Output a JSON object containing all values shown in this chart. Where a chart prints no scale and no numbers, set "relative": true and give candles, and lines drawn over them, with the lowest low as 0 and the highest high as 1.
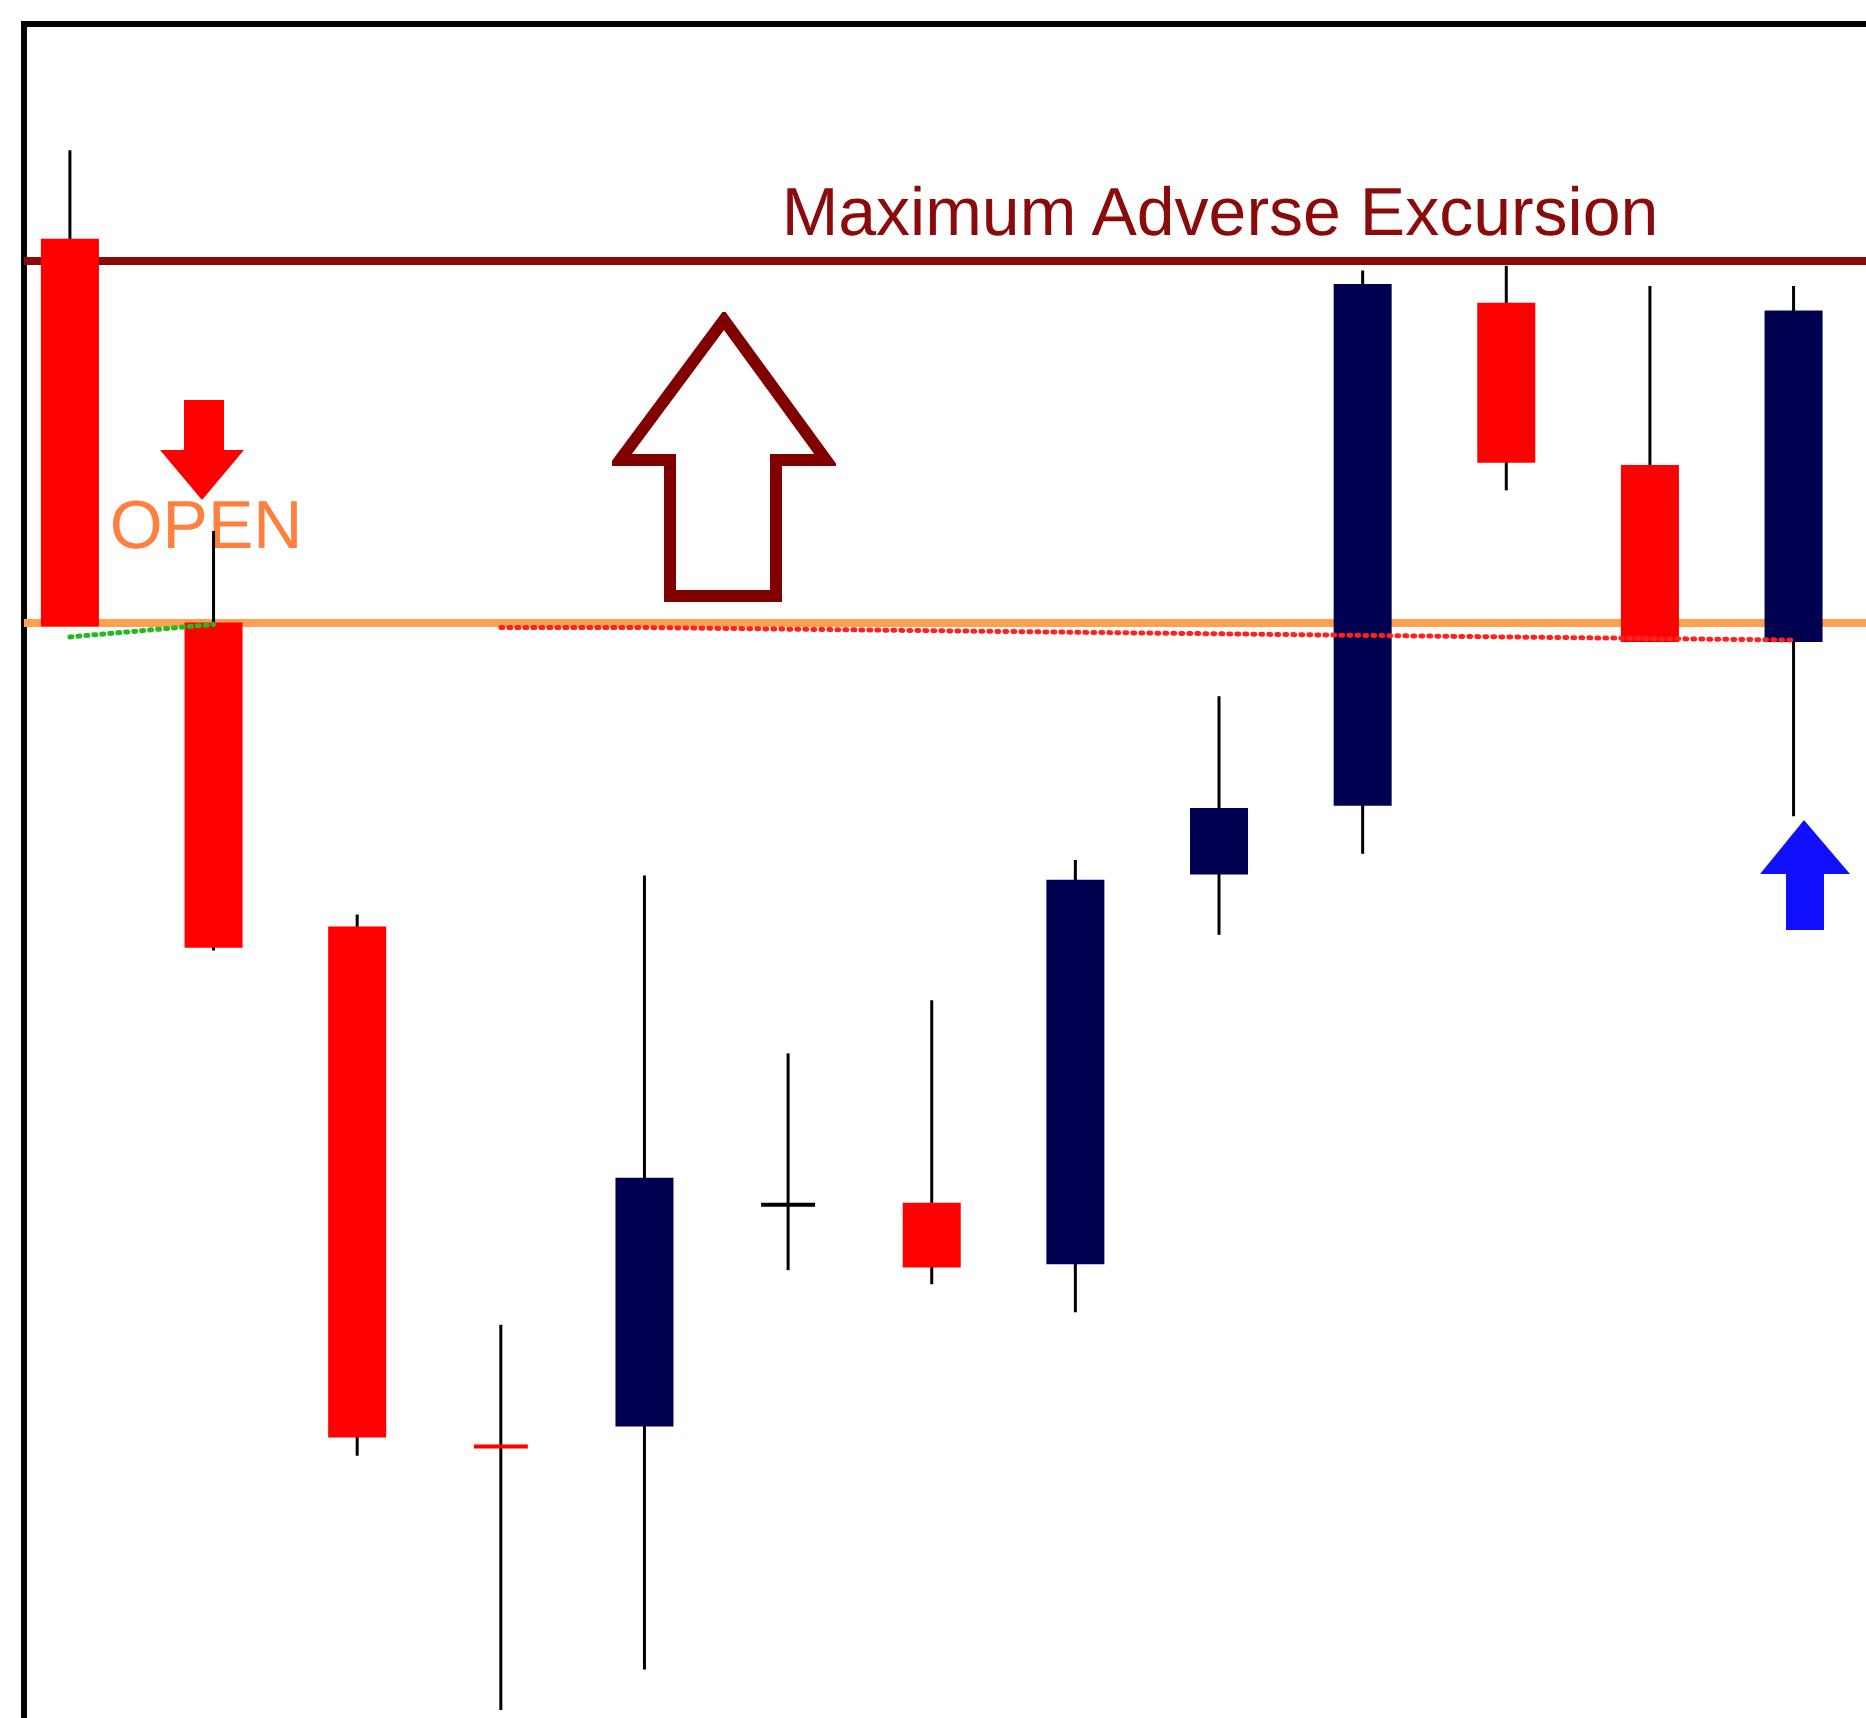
{
  "chart_data": {
    "type": "candlestick",
    "relative": true,
    "categories": [
      null,
      null,
      null,
      null,
      null,
      null,
      null,
      null,
      null,
      null,
      null,
      null,
      null
    ],
    "ohlc": [
      [
        0.942,
        1.0,
        0.696,
        0.696
      ],
      [
        0.696,
        0.756,
        0.487,
        0.49
      ],
      [
        0.501,
        0.51,
        0.163,
        0.176
      ],
      [
        0.169,
        0.247,
        0.0,
        0.169
      ],
      [
        0.183,
        0.535,
        0.026,
        0.34
      ],
      [
        0.324,
        0.421,
        0.282,
        0.324
      ],
      [
        0.324,
        0.455,
        0.273,
        0.285
      ],
      [
        0.287,
        0.545,
        0.255,
        0.531
      ],
      [
        0.537,
        0.65,
        0.497,
        0.577
      ],
      [
        0.581,
        0.923,
        0.549,
        0.913
      ],
      [
        0.901,
        0.926,
        0.782,
        0.801
      ],
      [
        0.797,
        0.913,
        0.686,
        0.686
      ],
      [
        0.686,
        0.913,
        0.573,
        0.896
      ]
    ],
    "colors": [
      "#ff0000",
      "#ff0000",
      "#ff0000",
      "#ff0000",
      "#000050",
      "#000000",
      "#ff0000",
      "#000050",
      "#000050",
      "#000050",
      "#ff0000",
      "#ff0000",
      "#000050"
    ],
    "series": [
      {
        "type": "line",
        "color": "#22bb22",
        "line_style": "dotted",
        "values": [
          0.688,
          0.696,
          null,
          null,
          null,
          null,
          null,
          null,
          null,
          null,
          null,
          null,
          null
        ]
      },
      {
        "type": "line",
        "color": "#ff2020",
        "line_style": "dotted",
        "values": [
          null,
          null,
          null,
          0.694,
          0.694,
          0.693,
          0.692,
          0.691,
          0.69,
          0.689,
          0.688,
          0.687,
          0.686
        ]
      }
    ],
    "ref_lines": [
      {
        "axis": "y",
        "value": 0.929,
        "label": "Maximum Adverse Excursion",
        "color": "#8b0a0a"
      },
      {
        "axis": "y",
        "value": 0.697,
        "color": "#ffa050"
      }
    ],
    "annotations": [
      "OPEN"
    ]
  }
}
